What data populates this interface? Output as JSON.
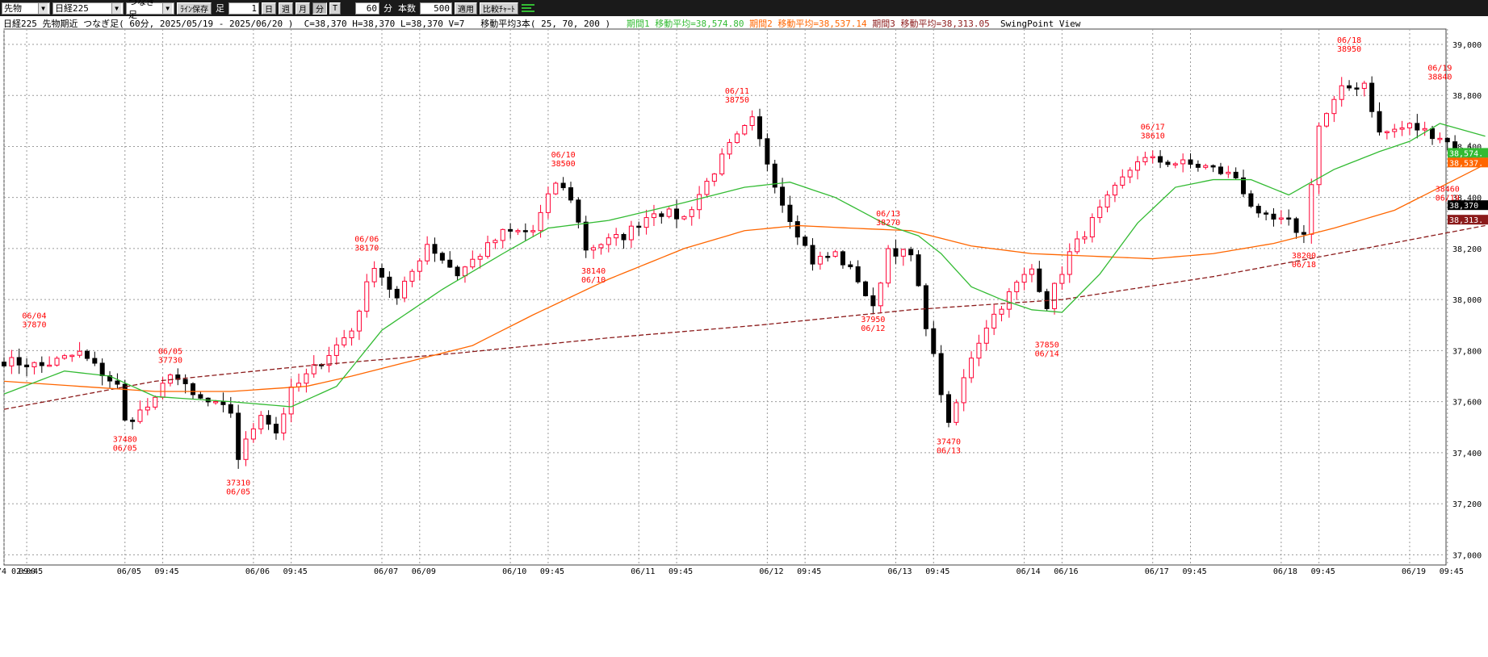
{
  "toolbar": {
    "market_select": "先物",
    "symbol_select": "日経225",
    "type_select": "つなぎ足",
    "save_button": "ﾗｲﾝ保存",
    "ashi_label": "足",
    "day_button": "日",
    "week_button": "週",
    "month_button": "月",
    "minute_button": "分",
    "tick_button": "T",
    "minute_value": "60",
    "minute_unit": "分",
    "bars_label": "本数",
    "bars_value": "500",
    "apply_button": "適用",
    "compare_button": "比較ﾁｬｰﾄ"
  },
  "info": {
    "title": "日経225 先物期近 つなぎ足( 60分, 2025/05/19 - 2025/06/20 )  C=38,370 H=38,370 L=38,370 V=7   移動平均3本( 25, 70, 200 )",
    "ma1_text": "期間1 移動平均=38,574.80",
    "ma2_text": "期間2 移動平均=38,537.14",
    "ma3_text": "期間3 移動平均=38,313.05",
    "view_text": "SwingPoint View"
  },
  "colors": {
    "up": "#ff0033",
    "down": "#000000",
    "ma1": "#33bb33",
    "ma2": "#ff6600",
    "ma3": "#8b1a1a",
    "swing": "#ff0000",
    "grid": "#9a9a9a"
  },
  "chart_data": {
    "type": "candlestick",
    "ylim": [
      36960,
      39060
    ],
    "y_ticks": [
      37000,
      37200,
      37400,
      37600,
      37800,
      38000,
      38200,
      38400,
      38600,
      38800,
      39000
    ],
    "y_tick_labels": [
      "37,000",
      "37,200",
      "37,400",
      "37,600",
      "37,800",
      "38,000",
      "38,200",
      "38,400",
      "38,600",
      "38,800",
      "39,000"
    ],
    "grid": true,
    "x_labels": [
      {
        "bar": 0,
        "text": "/4 02:00"
      },
      {
        "bar": 3,
        "text": "09:45"
      },
      {
        "bar": 16,
        "text": "06/05"
      },
      {
        "bar": 21,
        "text": "09:45"
      },
      {
        "bar": 33,
        "text": "06/06"
      },
      {
        "bar": 38,
        "text": "09:45"
      },
      {
        "bar": 50,
        "text": "06/07"
      },
      {
        "bar": 55,
        "text": "06/09"
      },
      {
        "bar": 67,
        "text": "06/10"
      },
      {
        "bar": 72,
        "text": "09:45"
      },
      {
        "bar": 84,
        "text": "06/11"
      },
      {
        "bar": 89,
        "text": "09:45"
      },
      {
        "bar": 101,
        "text": "06/12"
      },
      {
        "bar": 106,
        "text": "09:45"
      },
      {
        "bar": 118,
        "text": "06/13"
      },
      {
        "bar": 123,
        "text": "09:45"
      },
      {
        "bar": 135,
        "text": "06/14"
      },
      {
        "bar": 140,
        "text": "06/16"
      },
      {
        "bar": 152,
        "text": "06/17"
      },
      {
        "bar": 157,
        "text": "09:45"
      },
      {
        "bar": 169,
        "text": "06/18"
      },
      {
        "bar": 174,
        "text": "09:45"
      },
      {
        "bar": 186,
        "text": "06/19"
      },
      {
        "bar": 191,
        "text": "09:45"
      }
    ],
    "anchors": [
      [
        0,
        37760
      ],
      [
        5,
        37740
      ],
      [
        10,
        37790
      ],
      [
        15,
        37660
      ],
      [
        16,
        37520
      ],
      [
        20,
        37600
      ],
      [
        22,
        37720
      ],
      [
        25,
        37620
      ],
      [
        30,
        37560
      ],
      [
        31,
        37380
      ],
      [
        34,
        37560
      ],
      [
        36,
        37480
      ],
      [
        38,
        37640
      ],
      [
        42,
        37760
      ],
      [
        46,
        37880
      ],
      [
        49,
        38140
      ],
      [
        52,
        38000
      ],
      [
        56,
        38220
      ],
      [
        60,
        38100
      ],
      [
        66,
        38260
      ],
      [
        70,
        38270
      ],
      [
        73,
        38460
      ],
      [
        75,
        38400
      ],
      [
        77,
        38200
      ],
      [
        82,
        38250
      ],
      [
        86,
        38350
      ],
      [
        90,
        38320
      ],
      [
        96,
        38600
      ],
      [
        99,
        38700
      ],
      [
        103,
        38380
      ],
      [
        107,
        38150
      ],
      [
        110,
        38180
      ],
      [
        113,
        38080
      ],
      [
        115,
        37960
      ],
      [
        117,
        38200
      ],
      [
        120,
        38170
      ],
      [
        124,
        37640
      ],
      [
        125,
        37500
      ],
      [
        128,
        37780
      ],
      [
        130,
        37900
      ],
      [
        134,
        38060
      ],
      [
        136,
        38120
      ],
      [
        138,
        37980
      ],
      [
        141,
        38180
      ],
      [
        146,
        38390
      ],
      [
        150,
        38550
      ],
      [
        154,
        38540
      ],
      [
        159,
        38520
      ],
      [
        163,
        38480
      ],
      [
        166,
        38320
      ],
      [
        170,
        38300
      ],
      [
        172,
        38250
      ],
      [
        174,
        38680
      ],
      [
        177,
        38820
      ],
      [
        180,
        38850
      ],
      [
        182,
        38650
      ],
      [
        186,
        38680
      ],
      [
        190,
        38640
      ],
      [
        193,
        38570
      ],
      [
        196,
        38540
      ]
    ],
    "ma1_anchors": [
      [
        0,
        37630
      ],
      [
        8,
        37720
      ],
      [
        14,
        37700
      ],
      [
        20,
        37620
      ],
      [
        30,
        37600
      ],
      [
        38,
        37580
      ],
      [
        44,
        37660
      ],
      [
        50,
        37880
      ],
      [
        58,
        38040
      ],
      [
        66,
        38180
      ],
      [
        72,
        38280
      ],
      [
        80,
        38310
      ],
      [
        90,
        38380
      ],
      [
        98,
        38440
      ],
      [
        104,
        38460
      ],
      [
        110,
        38400
      ],
      [
        117,
        38290
      ],
      [
        121,
        38250
      ],
      [
        124,
        38180
      ],
      [
        128,
        38050
      ],
      [
        132,
        38000
      ],
      [
        136,
        37960
      ],
      [
        140,
        37950
      ],
      [
        145,
        38100
      ],
      [
        150,
        38300
      ],
      [
        155,
        38440
      ],
      [
        160,
        38470
      ],
      [
        165,
        38470
      ],
      [
        170,
        38410
      ],
      [
        176,
        38510
      ],
      [
        182,
        38580
      ],
      [
        186,
        38620
      ],
      [
        190,
        38690
      ],
      [
        196,
        38640
      ]
    ],
    "ma2_anchors": [
      [
        0,
        37680
      ],
      [
        10,
        37660
      ],
      [
        20,
        37640
      ],
      [
        30,
        37640
      ],
      [
        40,
        37660
      ],
      [
        46,
        37700
      ],
      [
        54,
        37760
      ],
      [
        62,
        37820
      ],
      [
        70,
        37940
      ],
      [
        80,
        38080
      ],
      [
        90,
        38200
      ],
      [
        98,
        38270
      ],
      [
        105,
        38290
      ],
      [
        112,
        38280
      ],
      [
        120,
        38270
      ],
      [
        128,
        38210
      ],
      [
        136,
        38180
      ],
      [
        144,
        38170
      ],
      [
        152,
        38160
      ],
      [
        160,
        38180
      ],
      [
        168,
        38220
      ],
      [
        176,
        38280
      ],
      [
        184,
        38350
      ],
      [
        190,
        38440
      ],
      [
        196,
        38530
      ]
    ],
    "ma3_anchors": [
      [
        0,
        37570
      ],
      [
        20,
        37680
      ],
      [
        40,
        37740
      ],
      [
        60,
        37790
      ],
      [
        80,
        37850
      ],
      [
        100,
        37900
      ],
      [
        120,
        37960
      ],
      [
        140,
        38000
      ],
      [
        160,
        38090
      ],
      [
        180,
        38200
      ],
      [
        196,
        38290
      ]
    ],
    "swing_points": [
      {
        "bar": 4,
        "price": 37870,
        "pos": "high",
        "date": "06/04",
        "value": "37870"
      },
      {
        "bar": 16,
        "price": 37480,
        "pos": "low",
        "date": "06/05",
        "value": "37480"
      },
      {
        "bar": 22,
        "price": 37730,
        "pos": "high",
        "date": "06/05",
        "value": "37730"
      },
      {
        "bar": 31,
        "price": 37310,
        "pos": "low",
        "date": "06/05",
        "value": "37310"
      },
      {
        "bar": 48,
        "price": 38170,
        "pos": "high",
        "date": "06/06",
        "value": "38170"
      },
      {
        "bar": 74,
        "price": 38500,
        "pos": "high",
        "date": "06/10",
        "value": "38500"
      },
      {
        "bar": 78,
        "price": 38140,
        "pos": "low",
        "date": "06/10",
        "value": "38140"
      },
      {
        "bar": 97,
        "price": 38750,
        "pos": "high",
        "date": "06/11",
        "value": "38750"
      },
      {
        "bar": 115,
        "price": 37950,
        "pos": "low",
        "date": "06/12",
        "value": "37950"
      },
      {
        "bar": 117,
        "price": 38270,
        "pos": "high",
        "date": "06/13",
        "value": "38270"
      },
      {
        "bar": 125,
        "price": 37470,
        "pos": "low",
        "date": "06/13",
        "value": "37470"
      },
      {
        "bar": 138,
        "price": 37850,
        "pos": "low",
        "date": "06/14",
        "value": "37850"
      },
      {
        "bar": 152,
        "price": 38610,
        "pos": "high",
        "date": "06/17",
        "value": "38610"
      },
      {
        "bar": 172,
        "price": 38200,
        "pos": "low",
        "date": "06/18",
        "value": "38200"
      },
      {
        "bar": 178,
        "price": 38950,
        "pos": "high",
        "date": "06/18",
        "value": "38950"
      },
      {
        "bar": 190,
        "price": 38840,
        "pos": "high",
        "date": "06/19",
        "value": "38840"
      },
      {
        "bar": 191,
        "price": 38460,
        "pos": "low",
        "date": "06/19",
        "value": "38460"
      }
    ],
    "price_tags": [
      {
        "price": 38574.8,
        "label": "38,574.",
        "color": "#33bb33"
      },
      {
        "price": 38537.14,
        "label": "38,537.",
        "color": "#ff6600"
      },
      {
        "price": 38370,
        "label": "38,370",
        "color": "#000000"
      },
      {
        "price": 38313.05,
        "label": "38,313.",
        "color": "#8b1a1a"
      }
    ]
  }
}
